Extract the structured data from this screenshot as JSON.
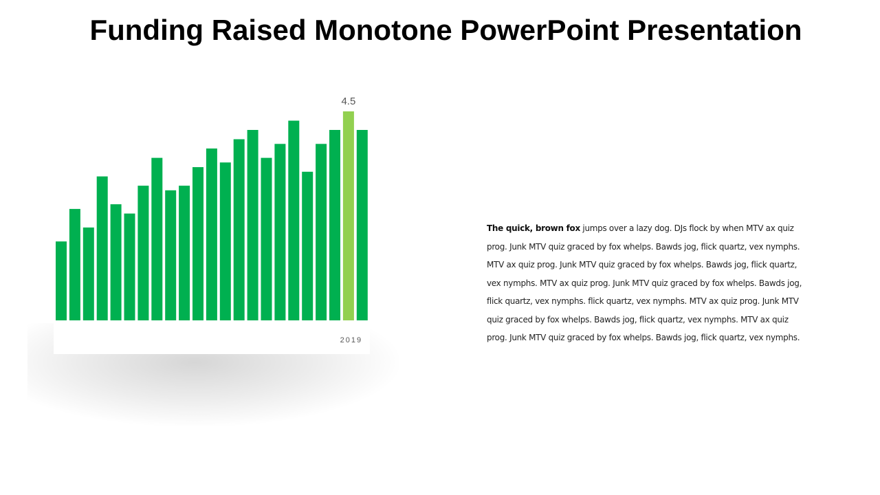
{
  "slide": {
    "title": "Funding Raised Monotone PowerPoint Presentation",
    "body_lead": "The quick, brown fox",
    "body_rest": " jumps over a lazy dog. DJs flock by when MTV ax quiz prog. Junk MTV quiz graced by fox whelps. Bawds jog, flick quartz, vex nymphs. MTV ax quiz prog. Junk MTV quiz graced by fox whelps. Bawds jog, flick quartz, vex nymphs. MTV ax quiz prog. Junk MTV quiz graced by fox whelps. Bawds jog, flick quartz, vex nymphs. flick quartz, vex nymphs. MTV ax quiz prog. Junk MTV quiz graced by fox whelps. Bawds jog, flick quartz, vex nymphs. MTV ax quiz prog. Junk MTV quiz graced by fox whelps. Bawds jog, flick quartz, vex nymphs."
  },
  "colors": {
    "bar": "#00b050",
    "highlight": "#92d050",
    "text": "#555555"
  },
  "chart_data": {
    "type": "bar",
    "title": "",
    "xlabel": "",
    "ylabel": "",
    "x_tick_label": "2019",
    "x_tick_index": 21,
    "highlight_index": 21,
    "highlight_label": "4.5",
    "ylim": [
      0,
      4.5
    ],
    "grid": false,
    "legend": "none",
    "values": [
      1.7,
      2.4,
      2.0,
      3.1,
      2.5,
      2.3,
      2.9,
      3.5,
      2.8,
      2.9,
      3.3,
      3.7,
      3.4,
      3.9,
      4.1,
      3.5,
      3.8,
      4.3,
      3.2,
      3.8,
      4.1,
      4.5,
      4.1
    ]
  }
}
